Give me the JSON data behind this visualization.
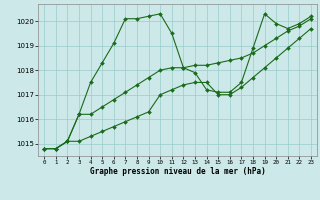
{
  "xlabel": "Graphe pression niveau de la mer (hPa)",
  "background_color": "#cce8e8",
  "grid_color": "#99cccc",
  "line_color": "#1a6b1a",
  "ylim": [
    1014.5,
    1020.7
  ],
  "yticks": [
    1015,
    1016,
    1017,
    1018,
    1019,
    1020
  ],
  "xlim": [
    -0.5,
    23.5
  ],
  "xticks": [
    0,
    1,
    2,
    3,
    4,
    5,
    6,
    7,
    8,
    9,
    10,
    11,
    12,
    13,
    14,
    15,
    16,
    17,
    18,
    19,
    20,
    21,
    22,
    23
  ],
  "series": [
    [
      1014.8,
      1014.8,
      1015.1,
      1016.2,
      1017.5,
      1018.3,
      1019.1,
      1020.1,
      1020.1,
      1020.2,
      1020.3,
      1019.5,
      1018.1,
      1017.9,
      1017.2,
      1017.1,
      1017.1,
      1017.5,
      1018.9,
      1020.3,
      1019.9,
      1019.7,
      1019.9,
      1020.2
    ],
    [
      1014.8,
      1014.8,
      1015.1,
      1016.2,
      1016.2,
      1016.5,
      1016.8,
      1017.1,
      1017.4,
      1017.7,
      1018.0,
      1018.1,
      1018.1,
      1018.2,
      1018.2,
      1018.3,
      1018.4,
      1018.5,
      1018.7,
      1019.0,
      1019.3,
      1019.6,
      1019.8,
      1020.1
    ],
    [
      1014.8,
      1014.8,
      1015.1,
      1015.1,
      1015.3,
      1015.5,
      1015.7,
      1015.9,
      1016.1,
      1016.3,
      1017.0,
      1017.2,
      1017.4,
      1017.5,
      1017.5,
      1017.0,
      1017.0,
      1017.3,
      1017.7,
      1018.1,
      1018.5,
      1018.9,
      1019.3,
      1019.7
    ]
  ]
}
